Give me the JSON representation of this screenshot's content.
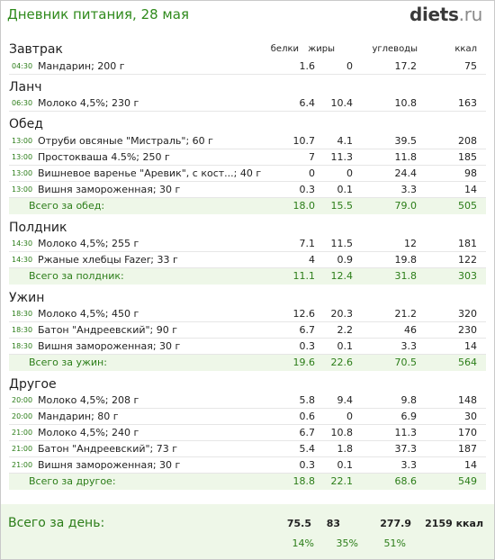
{
  "header": {
    "title": "Дневник питания, 28 мая",
    "logo_main": "diets",
    "logo_tld": ".ru"
  },
  "columns": {
    "protein": "белки",
    "fat": "жиры",
    "carbs": "углеводы",
    "kcal": "ккал"
  },
  "meals": [
    {
      "title": "Завтрак",
      "items": [
        {
          "time": "04:30",
          "name": "Мандарин; 200 г",
          "protein": "1.6",
          "fat": "0",
          "carbs": "17.2",
          "kcal": "75"
        }
      ]
    },
    {
      "title": "Ланч",
      "items": [
        {
          "time": "06:30",
          "name": "Молоко 4,5%; 230 г",
          "protein": "6.4",
          "fat": "10.4",
          "carbs": "10.8",
          "kcal": "163"
        }
      ]
    },
    {
      "title": "Обед",
      "items": [
        {
          "time": "13:00",
          "name": "Отруби овсяные \"Мистраль\"; 60 г",
          "protein": "10.7",
          "fat": "4.1",
          "carbs": "39.5",
          "kcal": "208"
        },
        {
          "time": "13:00",
          "name": "Простокваша 4.5%; 250 г",
          "protein": "7",
          "fat": "11.3",
          "carbs": "11.8",
          "kcal": "185"
        },
        {
          "time": "13:00",
          "name": "Вишневое варенье \"Аревик\", с кост...; 40 г",
          "protein": "0",
          "fat": "0",
          "carbs": "24.4",
          "kcal": "98"
        },
        {
          "time": "13:00",
          "name": "Вишня замороженная; 30 г",
          "protein": "0.3",
          "fat": "0.1",
          "carbs": "3.3",
          "kcal": "14"
        }
      ],
      "total": {
        "label": "Всего за обед:",
        "protein": "18.0",
        "fat": "15.5",
        "carbs": "79.0",
        "kcal": "505"
      }
    },
    {
      "title": "Полдник",
      "items": [
        {
          "time": "14:30",
          "name": "Молоко 4,5%; 255 г",
          "protein": "7.1",
          "fat": "11.5",
          "carbs": "12",
          "kcal": "181"
        },
        {
          "time": "14:30",
          "name": "Ржаные хлебцы Fazer; 33 г",
          "protein": "4",
          "fat": "0.9",
          "carbs": "19.8",
          "kcal": "122"
        }
      ],
      "total": {
        "label": "Всего за полдник:",
        "protein": "11.1",
        "fat": "12.4",
        "carbs": "31.8",
        "kcal": "303"
      }
    },
    {
      "title": "Ужин",
      "items": [
        {
          "time": "18:30",
          "name": "Молоко 4,5%; 450 г",
          "protein": "12.6",
          "fat": "20.3",
          "carbs": "21.2",
          "kcal": "320"
        },
        {
          "time": "18:30",
          "name": "Батон \"Андреевский\"; 90 г",
          "protein": "6.7",
          "fat": "2.2",
          "carbs": "46",
          "kcal": "230"
        },
        {
          "time": "18:30",
          "name": "Вишня замороженная; 30 г",
          "protein": "0.3",
          "fat": "0.1",
          "carbs": "3.3",
          "kcal": "14"
        }
      ],
      "total": {
        "label": "Всего за ужин:",
        "protein": "19.6",
        "fat": "22.6",
        "carbs": "70.5",
        "kcal": "564"
      }
    },
    {
      "title": "Другое",
      "items": [
        {
          "time": "20:00",
          "name": "Молоко 4,5%; 208 г",
          "protein": "5.8",
          "fat": "9.4",
          "carbs": "9.8",
          "kcal": "148"
        },
        {
          "time": "20:00",
          "name": "Мандарин; 80 г",
          "protein": "0.6",
          "fat": "0",
          "carbs": "6.9",
          "kcal": "30"
        },
        {
          "time": "21:00",
          "name": "Молоко 4,5%; 240 г",
          "protein": "6.7",
          "fat": "10.8",
          "carbs": "11.3",
          "kcal": "170"
        },
        {
          "time": "21:00",
          "name": "Батон \"Андреевский\"; 73 г",
          "protein": "5.4",
          "fat": "1.8",
          "carbs": "37.3",
          "kcal": "187"
        },
        {
          "time": "21:00",
          "name": "Вишня замороженная; 30 г",
          "protein": "0.3",
          "fat": "0.1",
          "carbs": "3.3",
          "kcal": "14"
        }
      ],
      "total": {
        "label": "Всего за другое:",
        "protein": "18.8",
        "fat": "22.1",
        "carbs": "68.6",
        "kcal": "549"
      }
    }
  ],
  "day_total": {
    "label": "Всего за день:",
    "protein": "75.5",
    "fat": "83",
    "carbs": "277.9",
    "kcal": "2159 ккал",
    "protein_pct": "14%",
    "fat_pct": "35%",
    "carbs_pct": "51%"
  }
}
